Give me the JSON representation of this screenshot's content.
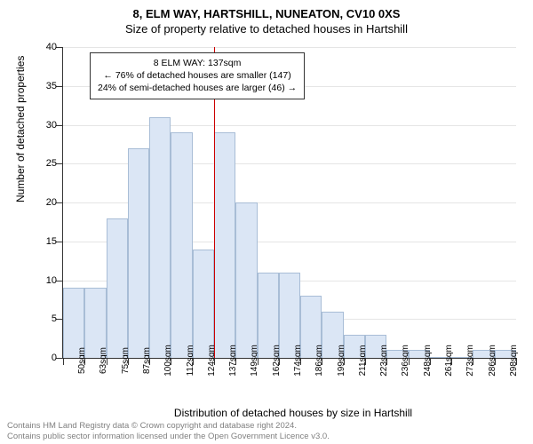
{
  "title": "8, ELM WAY, HARTSHILL, NUNEATON, CV10 0XS",
  "subtitle": "Size of property relative to detached houses in Hartshill",
  "chart": {
    "type": "histogram",
    "y_axis_title": "Number of detached properties",
    "x_axis_title": "Distribution of detached houses by size in Hartshill",
    "ylim": [
      0,
      40
    ],
    "ytick_step": 5,
    "x_categories": [
      "50sqm",
      "63sqm",
      "75sqm",
      "87sqm",
      "100sqm",
      "112sqm",
      "124sqm",
      "137sqm",
      "149sqm",
      "162sqm",
      "174sqm",
      "186sqm",
      "199sqm",
      "211sqm",
      "223sqm",
      "236sqm",
      "248sqm",
      "261sqm",
      "273sqm",
      "286sqm",
      "298sqm"
    ],
    "values": [
      9,
      9,
      18,
      27,
      31,
      29,
      14,
      29,
      20,
      11,
      11,
      8,
      6,
      3,
      3,
      1,
      1,
      0,
      0,
      1,
      1
    ],
    "bar_fill": "#dbe6f5",
    "bar_stroke": "#a8bdd6",
    "grid_color": "#e5e5e5",
    "background_color": "#ffffff",
    "axis_color": "#333333",
    "marker": {
      "value_index": 7,
      "color": "#cc0000"
    },
    "annotation": {
      "line1": "8 ELM WAY: 137sqm",
      "line2": "← 76% of detached houses are smaller (147)",
      "line3": "24% of semi-detached houses are larger (46) →"
    }
  },
  "footer": {
    "line1": "Contains HM Land Registry data © Crown copyright and database right 2024.",
    "line2": "Contains public sector information licensed under the Open Government Licence v3.0."
  }
}
